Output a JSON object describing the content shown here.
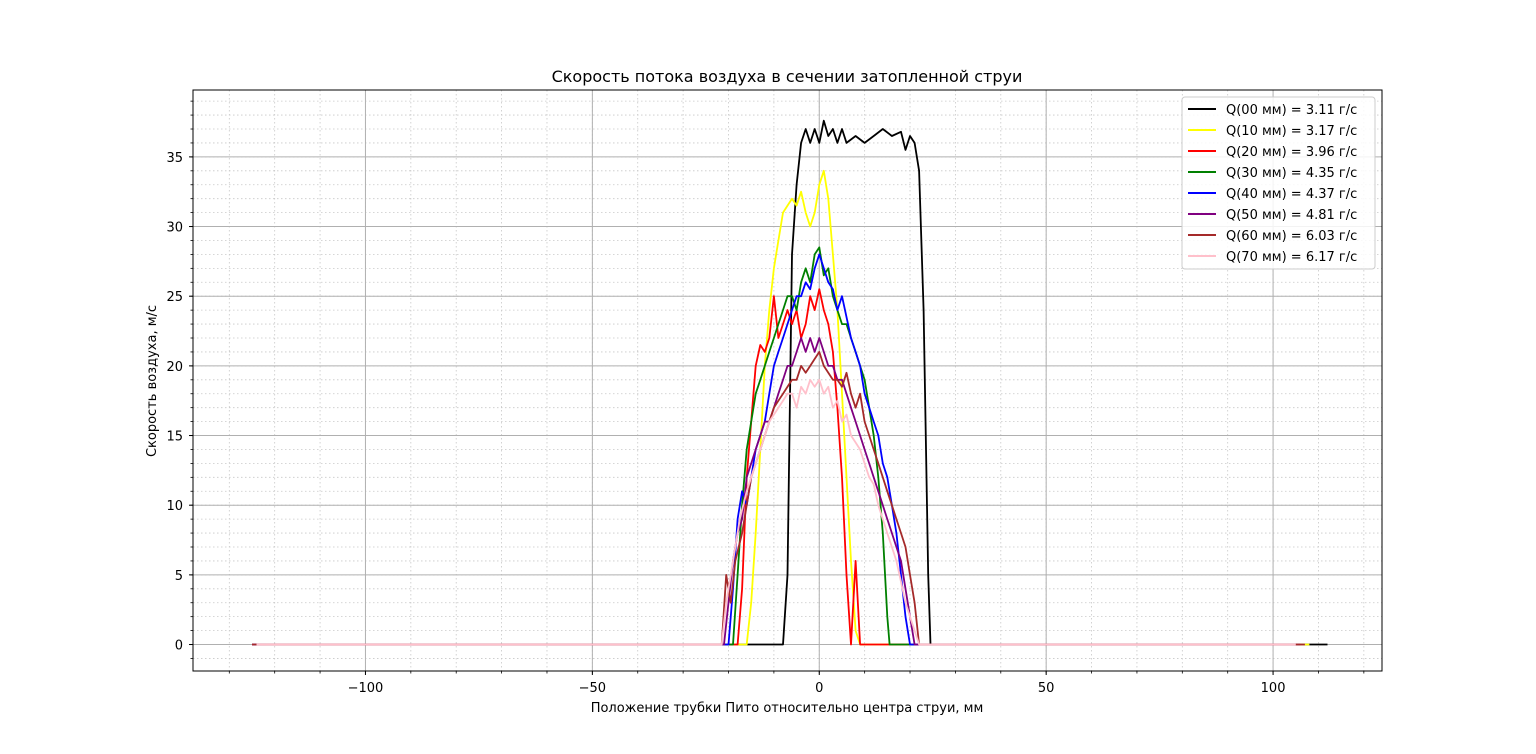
{
  "chart_data": {
    "type": "line",
    "title": "Скорость потока воздуха в сечении затопленной струи",
    "xlabel": "Положение трубки Пито относительно центра струи, мм",
    "ylabel": "Скорость воздуха, м/с",
    "xlim": [
      -138,
      124
    ],
    "ylim": [
      -1.9,
      39.8
    ],
    "x_ticks": [
      -100,
      -50,
      0,
      50,
      100
    ],
    "x_tick_labels": [
      "−100",
      "−50",
      "0",
      "50",
      "100"
    ],
    "y_ticks": [
      0,
      5,
      10,
      15,
      20,
      25,
      30,
      35
    ],
    "y_tick_labels": [
      "0",
      "5",
      "10",
      "15",
      "20",
      "25",
      "30",
      "35"
    ],
    "grid": true,
    "minor_grid": true,
    "legend_position": "top-right",
    "series": [
      {
        "name": "Q(00 мм) = 3.11 г/с",
        "color": "#000000",
        "points": [
          [
            -125,
            0
          ],
          [
            -8,
            0
          ],
          [
            -7,
            5
          ],
          [
            -6,
            28
          ],
          [
            -5,
            33
          ],
          [
            -4,
            36
          ],
          [
            -3,
            37
          ],
          [
            -2,
            36
          ],
          [
            -1,
            37
          ],
          [
            0,
            36
          ],
          [
            1,
            37.6
          ],
          [
            2,
            36.5
          ],
          [
            3,
            37
          ],
          [
            4,
            36
          ],
          [
            5,
            37
          ],
          [
            6,
            36
          ],
          [
            8,
            36.5
          ],
          [
            10,
            36
          ],
          [
            12,
            36.5
          ],
          [
            14,
            37
          ],
          [
            16,
            36.5
          ],
          [
            18,
            36.8
          ],
          [
            19,
            35.5
          ],
          [
            20,
            36.5
          ],
          [
            21,
            36
          ],
          [
            22,
            34
          ],
          [
            23,
            24
          ],
          [
            24,
            5
          ],
          [
            24.5,
            0
          ],
          [
            112,
            0
          ]
        ]
      },
      {
        "name": "Q(10 мм) = 3.17 г/с",
        "color": "#ffff00",
        "points": [
          [
            -125,
            0
          ],
          [
            -16,
            0
          ],
          [
            -15,
            3
          ],
          [
            -14,
            8
          ],
          [
            -13,
            14
          ],
          [
            -12,
            20
          ],
          [
            -11,
            24
          ],
          [
            -10,
            27
          ],
          [
            -9,
            29
          ],
          [
            -8,
            31
          ],
          [
            -7,
            31.5
          ],
          [
            -6,
            32
          ],
          [
            -5,
            31.5
          ],
          [
            -4,
            32.5
          ],
          [
            -3,
            31
          ],
          [
            -2,
            30
          ],
          [
            -1,
            31
          ],
          [
            0,
            33
          ],
          [
            1,
            34
          ],
          [
            2,
            32
          ],
          [
            3,
            28
          ],
          [
            4,
            24
          ],
          [
            5,
            18
          ],
          [
            6,
            12
          ],
          [
            7,
            6
          ],
          [
            8,
            1
          ],
          [
            9,
            0
          ],
          [
            108,
            0
          ]
        ]
      },
      {
        "name": "Q(20 мм) = 3.96 г/с",
        "color": "#ff0000",
        "points": [
          [
            -125,
            0
          ],
          [
            -18,
            0
          ],
          [
            -17,
            4
          ],
          [
            -16,
            12
          ],
          [
            -15,
            16
          ],
          [
            -14,
            20
          ],
          [
            -13,
            21.5
          ],
          [
            -12,
            21
          ],
          [
            -11,
            22
          ],
          [
            -10,
            25
          ],
          [
            -9,
            22
          ],
          [
            -8,
            23
          ],
          [
            -7,
            24
          ],
          [
            -6,
            23
          ],
          [
            -5,
            24
          ],
          [
            -4,
            22
          ],
          [
            -3,
            23
          ],
          [
            -2,
            25
          ],
          [
            -1,
            24
          ],
          [
            0,
            25.5
          ],
          [
            1,
            24
          ],
          [
            2,
            23
          ],
          [
            3,
            21
          ],
          [
            4,
            17
          ],
          [
            5,
            12
          ],
          [
            6,
            5
          ],
          [
            7,
            0
          ],
          [
            8,
            6
          ],
          [
            9,
            0
          ],
          [
            105,
            0
          ]
        ]
      },
      {
        "name": "Q(30 мм) = 4.35 г/с",
        "color": "#008000",
        "points": [
          [
            -122,
            0
          ],
          [
            -19,
            0
          ],
          [
            -18,
            5
          ],
          [
            -17,
            10
          ],
          [
            -16,
            14
          ],
          [
            -15,
            16
          ],
          [
            -14,
            18
          ],
          [
            -13,
            19
          ],
          [
            -12,
            20
          ],
          [
            -11,
            21
          ],
          [
            -10,
            22
          ],
          [
            -9,
            23
          ],
          [
            -8,
            24
          ],
          [
            -7,
            25
          ],
          [
            -6,
            25
          ],
          [
            -5,
            24
          ],
          [
            -4,
            26
          ],
          [
            -3,
            27
          ],
          [
            -2,
            26
          ],
          [
            -1,
            28
          ],
          [
            0,
            28.5
          ],
          [
            1,
            26.5
          ],
          [
            2,
            27
          ],
          [
            3,
            25
          ],
          [
            4,
            24
          ],
          [
            5,
            23
          ],
          [
            6,
            23
          ],
          [
            7,
            22
          ],
          [
            8,
            21
          ],
          [
            9,
            20
          ],
          [
            10,
            19
          ],
          [
            11,
            17
          ],
          [
            12,
            15
          ],
          [
            13,
            12
          ],
          [
            14,
            8
          ],
          [
            15,
            2
          ],
          [
            15.5,
            0
          ],
          [
            104,
            0
          ]
        ]
      },
      {
        "name": "Q(40 мм) = 4.37 г/с",
        "color": "#0000ff",
        "points": [
          [
            -125,
            0
          ],
          [
            -20,
            0
          ],
          [
            -19,
            4
          ],
          [
            -18,
            9
          ],
          [
            -17,
            11
          ],
          [
            -16,
            10
          ],
          [
            -15,
            12
          ],
          [
            -14,
            14
          ],
          [
            -13,
            15
          ],
          [
            -12,
            16
          ],
          [
            -11,
            18
          ],
          [
            -10,
            20
          ],
          [
            -9,
            21
          ],
          [
            -8,
            22
          ],
          [
            -7,
            23
          ],
          [
            -6,
            24
          ],
          [
            -5,
            25
          ],
          [
            -4,
            25
          ],
          [
            -3,
            26
          ],
          [
            -2,
            25.5
          ],
          [
            -1,
            27
          ],
          [
            0,
            28
          ],
          [
            1,
            27
          ],
          [
            2,
            26
          ],
          [
            3,
            25.5
          ],
          [
            4,
            24
          ],
          [
            5,
            25
          ],
          [
            6,
            23.5
          ],
          [
            7,
            22
          ],
          [
            8,
            21
          ],
          [
            9,
            20
          ],
          [
            10,
            18
          ],
          [
            11,
            17
          ],
          [
            12,
            16
          ],
          [
            13,
            15
          ],
          [
            14,
            13
          ],
          [
            15,
            12
          ],
          [
            16,
            10
          ],
          [
            17,
            8
          ],
          [
            18,
            5
          ],
          [
            19,
            2
          ],
          [
            20,
            0
          ],
          [
            105,
            0
          ]
        ]
      },
      {
        "name": "Q(50 мм) = 4.81 г/с",
        "color": "#800080",
        "points": [
          [
            -125,
            0
          ],
          [
            -21,
            0
          ],
          [
            -20,
            3
          ],
          [
            -19,
            6
          ],
          [
            -18,
            8
          ],
          [
            -17,
            9
          ],
          [
            -16,
            12
          ],
          [
            -15,
            13
          ],
          [
            -14,
            14
          ],
          [
            -13,
            15
          ],
          [
            -12,
            16
          ],
          [
            -11,
            16
          ],
          [
            -10,
            17
          ],
          [
            -9,
            18
          ],
          [
            -8,
            19
          ],
          [
            -7,
            20
          ],
          [
            -6,
            20
          ],
          [
            -5,
            21
          ],
          [
            -4,
            22
          ],
          [
            -3,
            21
          ],
          [
            -2,
            22
          ],
          [
            -1,
            21
          ],
          [
            0,
            22
          ],
          [
            1,
            21
          ],
          [
            2,
            20
          ],
          [
            3,
            20
          ],
          [
            4,
            19
          ],
          [
            5,
            19
          ],
          [
            6,
            18
          ],
          [
            7,
            17
          ],
          [
            8,
            16
          ],
          [
            9,
            15
          ],
          [
            10,
            14
          ],
          [
            11,
            13
          ],
          [
            12,
            12
          ],
          [
            13,
            11
          ],
          [
            14,
            10
          ],
          [
            15,
            9
          ],
          [
            16,
            8
          ],
          [
            17,
            7
          ],
          [
            18,
            6
          ],
          [
            19,
            4
          ],
          [
            20,
            2
          ],
          [
            21,
            0
          ],
          [
            106,
            0
          ]
        ]
      },
      {
        "name": "Q(60 мм) = 6.03 г/с",
        "color": "#a52a2a",
        "points": [
          [
            -125,
            0
          ],
          [
            -21.5,
            0
          ],
          [
            -20.5,
            5
          ],
          [
            -19.5,
            3
          ],
          [
            -18.5,
            6
          ],
          [
            -17,
            8
          ],
          [
            -16,
            10
          ],
          [
            -15,
            12
          ],
          [
            -14,
            13
          ],
          [
            -13,
            14
          ],
          [
            -12,
            15
          ],
          [
            -11,
            16
          ],
          [
            -10,
            17
          ],
          [
            -9,
            17.5
          ],
          [
            -8,
            18
          ],
          [
            -7,
            18.5
          ],
          [
            -6,
            19
          ],
          [
            -5,
            19
          ],
          [
            -4,
            20
          ],
          [
            -3,
            19.5
          ],
          [
            -2,
            20
          ],
          [
            -1,
            20.5
          ],
          [
            0,
            21
          ],
          [
            1,
            20
          ],
          [
            2,
            19.5
          ],
          [
            3,
            19
          ],
          [
            4,
            19
          ],
          [
            5,
            18.5
          ],
          [
            6,
            19.5
          ],
          [
            7,
            18
          ],
          [
            8,
            17
          ],
          [
            9,
            18
          ],
          [
            10,
            16
          ],
          [
            11,
            15
          ],
          [
            12,
            14
          ],
          [
            13,
            13
          ],
          [
            14,
            12
          ],
          [
            15,
            11
          ],
          [
            16,
            10
          ],
          [
            17,
            9
          ],
          [
            18,
            8
          ],
          [
            19,
            7
          ],
          [
            20,
            5
          ],
          [
            21,
            3
          ],
          [
            22,
            0
          ],
          [
            107,
            0
          ]
        ]
      },
      {
        "name": "Q(70 мм) = 6.17 г/с",
        "color": "#ffc0cb",
        "points": [
          [
            -124,
            0
          ],
          [
            -21.5,
            0
          ],
          [
            -20.5,
            3
          ],
          [
            -19.5,
            5
          ],
          [
            -18.5,
            7
          ],
          [
            -17.5,
            9
          ],
          [
            -16,
            11
          ],
          [
            -15,
            12
          ],
          [
            -14,
            13
          ],
          [
            -13,
            14
          ],
          [
            -12,
            15
          ],
          [
            -11,
            16
          ],
          [
            -10,
            16.5
          ],
          [
            -9,
            17
          ],
          [
            -8,
            17.5
          ],
          [
            -7,
            18
          ],
          [
            -6,
            18
          ],
          [
            -5,
            17
          ],
          [
            -4,
            18.5
          ],
          [
            -3,
            18
          ],
          [
            -2,
            19
          ],
          [
            -1,
            18.5
          ],
          [
            0,
            19
          ],
          [
            1,
            18
          ],
          [
            2,
            18.5
          ],
          [
            3,
            17
          ],
          [
            4,
            17.5
          ],
          [
            5,
            16
          ],
          [
            6,
            16.5
          ],
          [
            7,
            15
          ],
          [
            8,
            14.5
          ],
          [
            9,
            14
          ],
          [
            10,
            13
          ],
          [
            11,
            12
          ],
          [
            12,
            11.5
          ],
          [
            13,
            10
          ],
          [
            14,
            9
          ],
          [
            15,
            8
          ],
          [
            16,
            7
          ],
          [
            17,
            6
          ],
          [
            18,
            4.5
          ],
          [
            19,
            3
          ],
          [
            20,
            2
          ],
          [
            21,
            1
          ],
          [
            22,
            0
          ],
          [
            105,
            0
          ]
        ]
      }
    ]
  }
}
